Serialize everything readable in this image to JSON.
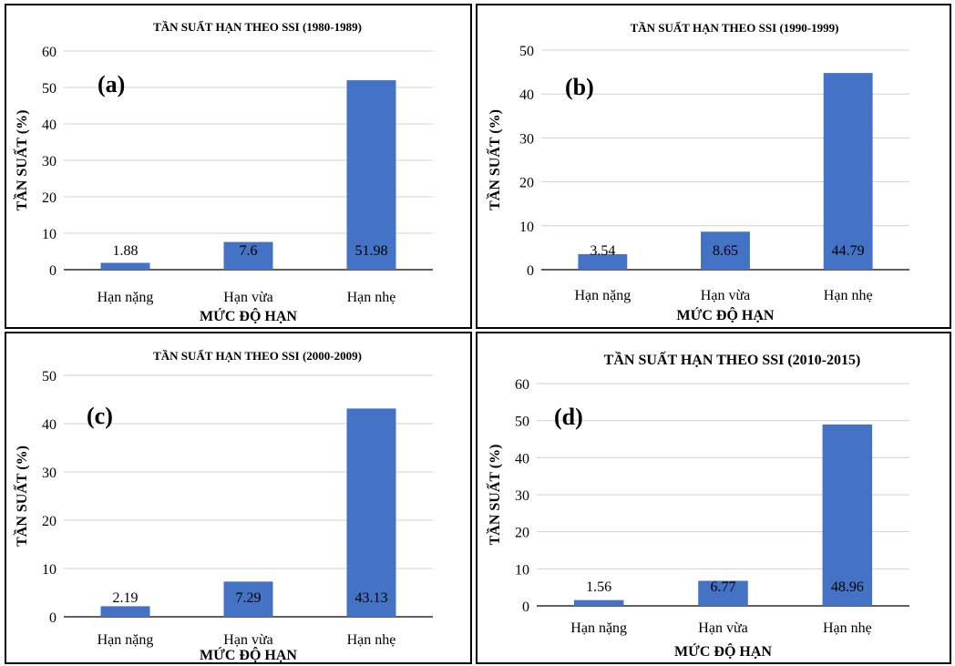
{
  "chart_data": [
    {
      "type": "bar",
      "panel_label": "(a)",
      "title": "TẦN SUẤT HẠN THEO SSI (1980-1989)",
      "xlabel": "MỨC ĐỘ HẠN",
      "ylabel": "TẦN SUẤT (%)",
      "categories": [
        "Hạn nặng",
        "Hạn vừa",
        "Hạn nhẹ"
      ],
      "values": [
        1.88,
        7.6,
        51.98
      ],
      "value_labels": [
        "1.88",
        "7.6",
        "51.98"
      ],
      "ylim": [
        0,
        60
      ],
      "yticks": [
        "0",
        "10",
        "20",
        "30",
        "40",
        "50",
        "60"
      ],
      "grid": true,
      "bar_color": "#4472C4"
    },
    {
      "type": "bar",
      "panel_label": "(b)",
      "title": "TẦN SUẤT HẠN THEO SSI (1990-1999)",
      "xlabel": "MỨC ĐỘ HẠN",
      "ylabel": "TẦN SUẤT (%)",
      "categories": [
        "Hạn nặng",
        "Hạn vừa",
        "Hạn nhẹ"
      ],
      "values": [
        3.54,
        8.65,
        44.79
      ],
      "value_labels": [
        "3.54",
        "8.65",
        "44.79"
      ],
      "ylim": [
        0,
        50
      ],
      "yticks": [
        "0",
        "10",
        "20",
        "30",
        "40",
        "50"
      ],
      "grid": true,
      "bar_color": "#4472C4"
    },
    {
      "type": "bar",
      "panel_label": "(c)",
      "title": "TẦN SUẤT HẠN THEO SSI (2000-2009)",
      "xlabel": "MỨC ĐỘ HẠN",
      "ylabel": "TẦN SUẤT (%)",
      "categories": [
        "Hạn nặng",
        "Hạn vừa",
        "Hạn nhẹ"
      ],
      "values": [
        2.19,
        7.29,
        43.13
      ],
      "value_labels": [
        "2.19",
        "7.29",
        "43.13"
      ],
      "ylim": [
        0,
        50
      ],
      "yticks": [
        "0",
        "10",
        "20",
        "30",
        "40",
        "50"
      ],
      "grid": true,
      "bar_color": "#4472C4"
    },
    {
      "type": "bar",
      "panel_label": "(d)",
      "title": "TẦN SUẤT HẠN THEO SSI (2010-2015)",
      "xlabel": "MỨC ĐỘ HẠN",
      "ylabel": "TẦN SUẤT (%)",
      "categories": [
        "Hạn nặng",
        "Hạn vừa",
        "Hạn nhẹ"
      ],
      "values": [
        1.56,
        6.77,
        48.96
      ],
      "value_labels": [
        "1.56",
        "6.77",
        "48.96"
      ],
      "ylim": [
        0,
        60
      ],
      "yticks": [
        "0",
        "10",
        "20",
        "30",
        "40",
        "50",
        "60"
      ],
      "grid": true,
      "bar_color": "#4472C4"
    }
  ]
}
